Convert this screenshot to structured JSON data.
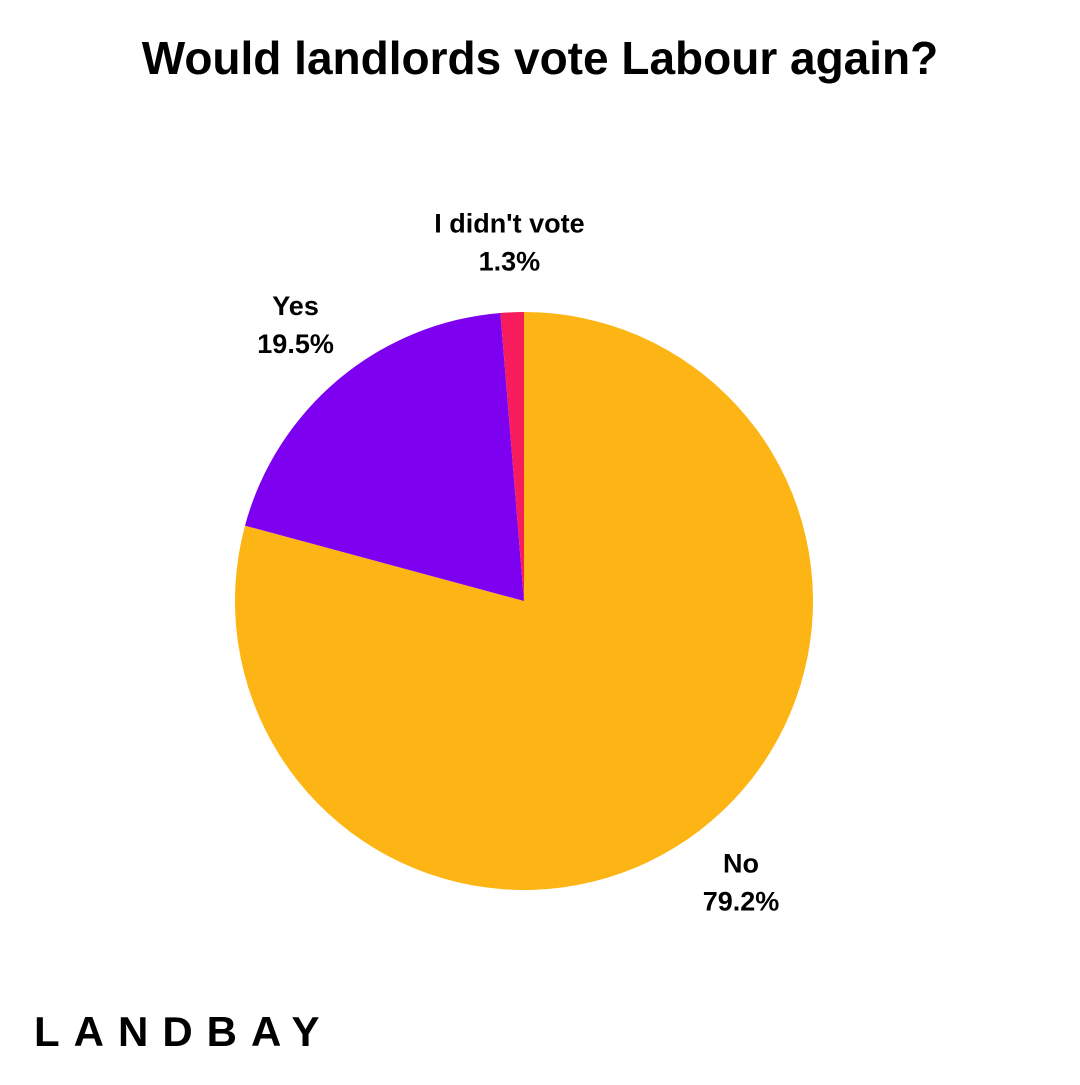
{
  "chart_data": {
    "type": "pie",
    "title": "Would landlords vote Labour again?",
    "categories": [
      "No",
      "Yes",
      "I didn't vote"
    ],
    "values": [
      79.2,
      19.5,
      1.3
    ],
    "value_labels": [
      "79.2%",
      "19.5%",
      "1.3%"
    ],
    "colors": [
      "#fdb515",
      "#7e00f0",
      "#f71d5c"
    ]
  },
  "footer": {
    "logo": "LANDBAY"
  }
}
